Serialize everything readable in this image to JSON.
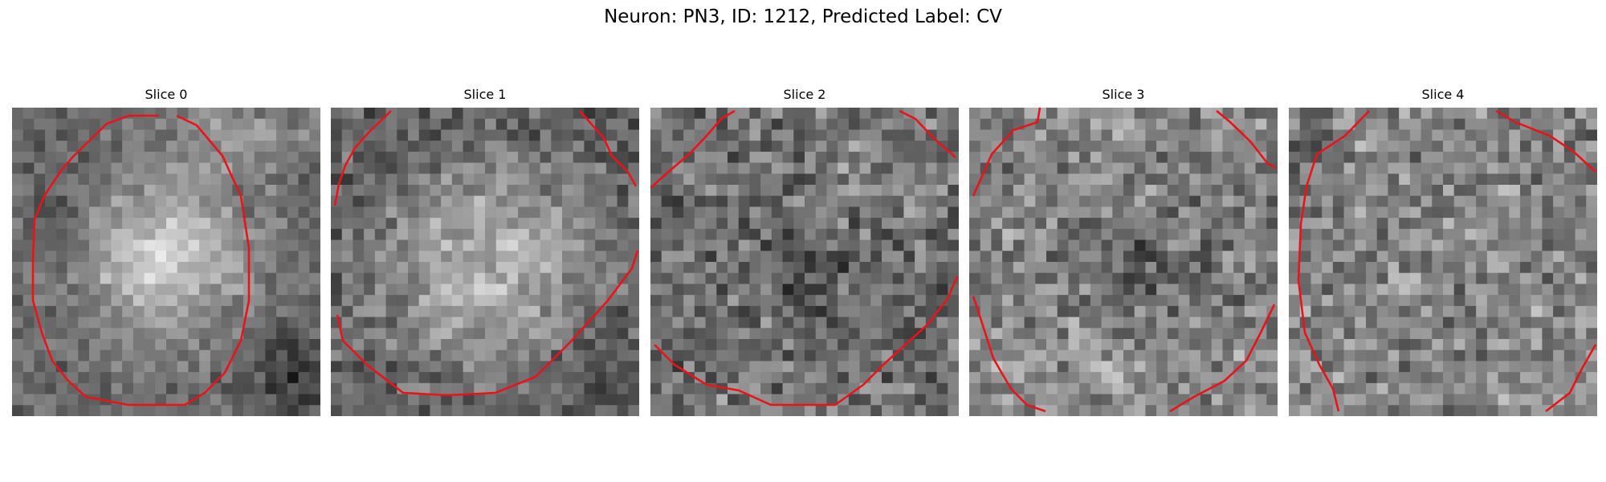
{
  "figure": {
    "title": "Neuron: PN3, ID: 1212, Predicted Label: CV"
  },
  "panels": [
    {
      "title": "Slice 0",
      "image": "grayscale-microscopy-slice-with-cell-contour",
      "brightness": "bright-center"
    },
    {
      "title": "Slice 1",
      "image": "grayscale-microscopy-slice-with-cell-contour",
      "brightness": "bright-large-blob"
    },
    {
      "title": "Slice 2",
      "image": "grayscale-microscopy-slice-with-cell-contour",
      "brightness": "dark-noisy"
    },
    {
      "title": "Slice 3",
      "image": "grayscale-microscopy-slice-with-cell-contour",
      "brightness": "noisy-dark-center"
    },
    {
      "title": "Slice 4",
      "image": "grayscale-microscopy-slice-with-cell-contour",
      "brightness": "uniform-noisy"
    }
  ],
  "colors": {
    "contour": "#e8141a",
    "background": "#ffffff"
  }
}
